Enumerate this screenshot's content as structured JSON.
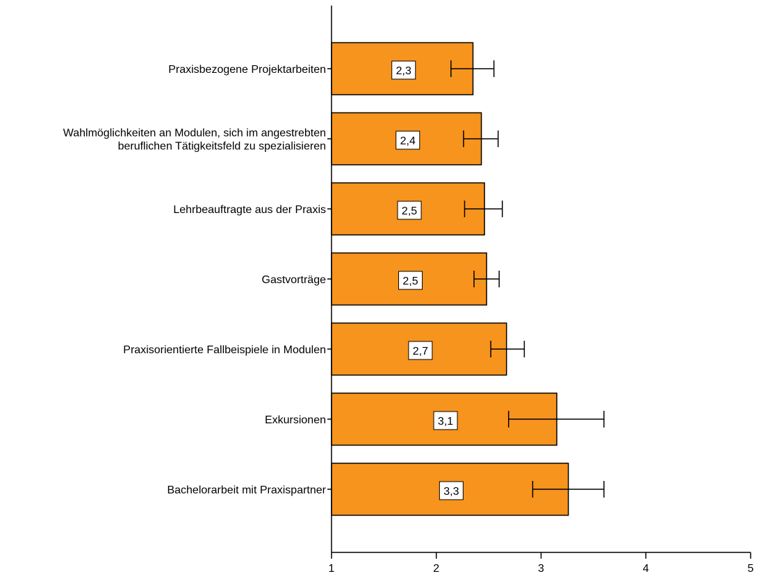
{
  "chart_data": {
    "type": "bar",
    "orientation": "horizontal",
    "categories": [
      [
        "Praxisbezogene Projektarbeiten"
      ],
      [
        "Wahlmöglichkeiten an Modulen, sich im angestrebten",
        "beruflichen Tätigkeitsfeld zu spezialisieren"
      ],
      [
        "Lehrbeauftragte aus der Praxis"
      ],
      [
        "Gastvorträge"
      ],
      [
        "Praxisorientierte Fallbeispiele in Modulen"
      ],
      [
        "Exkursionen"
      ],
      [
        "Bachelorarbeit mit Praxispartner"
      ]
    ],
    "values": [
      2.35,
      2.43,
      2.46,
      2.48,
      2.67,
      3.15,
      3.26
    ],
    "value_labels": [
      "2,3",
      "2,4",
      "2,5",
      "2,5",
      "2,7",
      "3,1",
      "3,3"
    ],
    "error_low": [
      2.14,
      2.26,
      2.27,
      2.36,
      2.52,
      2.69,
      2.92
    ],
    "error_high": [
      2.55,
      2.59,
      2.63,
      2.6,
      2.84,
      3.6,
      3.6
    ],
    "xlim": [
      1,
      5
    ],
    "xticks": [
      1,
      2,
      3,
      4,
      5
    ],
    "xlabel": "",
    "ylabel": "",
    "title": "",
    "grid": false,
    "bar_color": "#f7941d",
    "bar_edge_color": "#000000"
  }
}
